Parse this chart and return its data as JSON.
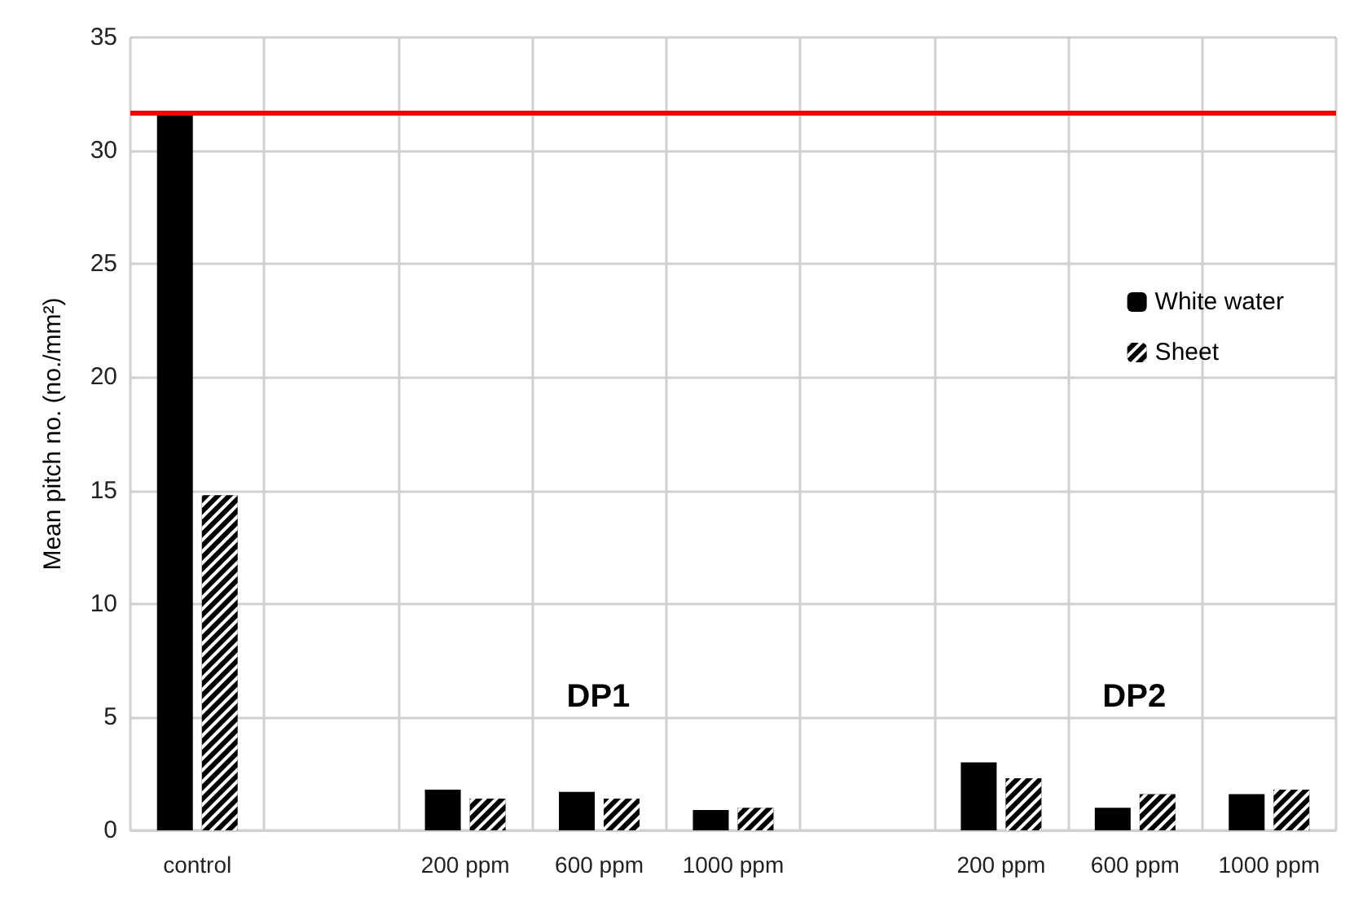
{
  "chart_data": {
    "type": "bar",
    "ylabel": "Mean pitch no. (no./mm²)",
    "categories": [
      "control",
      null,
      "200 ppm",
      "600 ppm",
      "1000 ppm",
      null,
      "200 ppm",
      "600 ppm",
      "1000 ppm"
    ],
    "series": [
      {
        "name": "White water",
        "color": "#000000",
        "values": [
          31.6,
          null,
          1.8,
          1.7,
          0.9,
          null,
          3.0,
          1.0,
          1.6
        ]
      },
      {
        "name": "Sheet",
        "color": "#000000",
        "values": [
          14.8,
          null,
          1.4,
          1.4,
          1.0,
          null,
          2.3,
          1.6,
          1.8
        ]
      }
    ],
    "ylim": [
      0,
      35
    ],
    "yticks": [
      0,
      5,
      10,
      15,
      20,
      25,
      30,
      35
    ],
    "grid": true,
    "legend": "right",
    "ref_lines": [
      {
        "axis": "y",
        "value": 31.7,
        "color": "#ff0000",
        "line_style": "solid"
      }
    ],
    "annotations": [
      "DP1",
      "DP2"
    ]
  }
}
